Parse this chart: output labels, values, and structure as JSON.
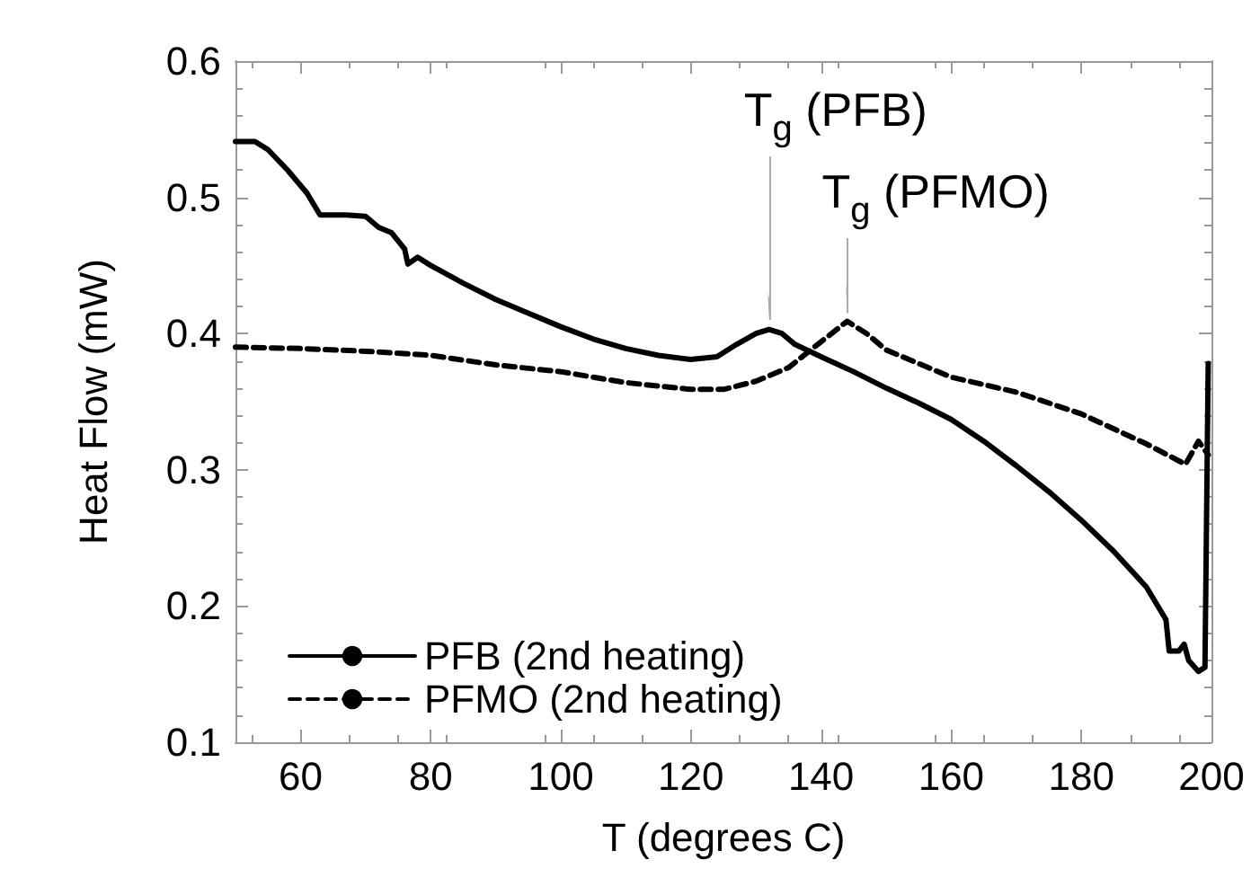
{
  "chart_data": {
    "type": "line",
    "xlabel": "T (degrees C)",
    "ylabel": "Heat Flow (mW)",
    "xlim": [
      50,
      200
    ],
    "xticks": [
      60,
      80,
      100,
      120,
      140,
      160,
      180,
      200
    ],
    "ylim": [
      0.1,
      0.6
    ],
    "yticks": [
      0.1,
      0.2,
      0.3,
      0.4,
      0.5,
      0.6
    ],
    "grid": false,
    "legend": "bottom left",
    "marker": "none",
    "series": [
      {
        "name": "PFB (2nd heating)",
        "color": "#000000",
        "line_style": "solid",
        "x": [
          50,
          53,
          55,
          58,
          61,
          63,
          67,
          70,
          72,
          74,
          75,
          76,
          76.5,
          78,
          80,
          85,
          90,
          95,
          100,
          105,
          110,
          115,
          120,
          124,
          127,
          130,
          132,
          134,
          136,
          140,
          145,
          150,
          155,
          160,
          165,
          170,
          175,
          180,
          185,
          190,
          193,
          193.5,
          195,
          195.8,
          196.5,
          198,
          199,
          199.5
        ],
        "values": [
          0.541,
          0.541,
          0.535,
          0.52,
          0.503,
          0.487,
          0.487,
          0.486,
          0.478,
          0.474,
          0.468,
          0.462,
          0.451,
          0.456,
          0.45,
          0.437,
          0.425,
          0.415,
          0.405,
          0.396,
          0.389,
          0.384,
          0.381,
          0.383,
          0.392,
          0.4,
          0.403,
          0.4,
          0.392,
          0.383,
          0.372,
          0.36,
          0.349,
          0.337,
          0.321,
          0.303,
          0.284,
          0.263,
          0.24,
          0.214,
          0.19,
          0.167,
          0.167,
          0.172,
          0.16,
          0.152,
          0.155,
          0.378
        ]
      },
      {
        "name": "PFMO (2nd heating)",
        "color": "#000000",
        "line_style": "dashed",
        "x": [
          50,
          60,
          70,
          80,
          90,
          100,
          110,
          120,
          125,
          130,
          135,
          140,
          144,
          147,
          150,
          160,
          170,
          180,
          190,
          196,
          198,
          199.5
        ],
        "values": [
          0.39,
          0.389,
          0.387,
          0.384,
          0.377,
          0.372,
          0.364,
          0.359,
          0.359,
          0.365,
          0.375,
          0.394,
          0.409,
          0.4,
          0.388,
          0.368,
          0.357,
          0.341,
          0.319,
          0.304,
          0.321,
          0.311
        ]
      }
    ],
    "annotations": [
      {
        "text": "T$_{g}$ (PFB)",
        "x": 132,
        "y": 0.41
      },
      {
        "text": "T$_{g}$ (PFMO)",
        "x": 144,
        "y": 0.415
      }
    ]
  }
}
